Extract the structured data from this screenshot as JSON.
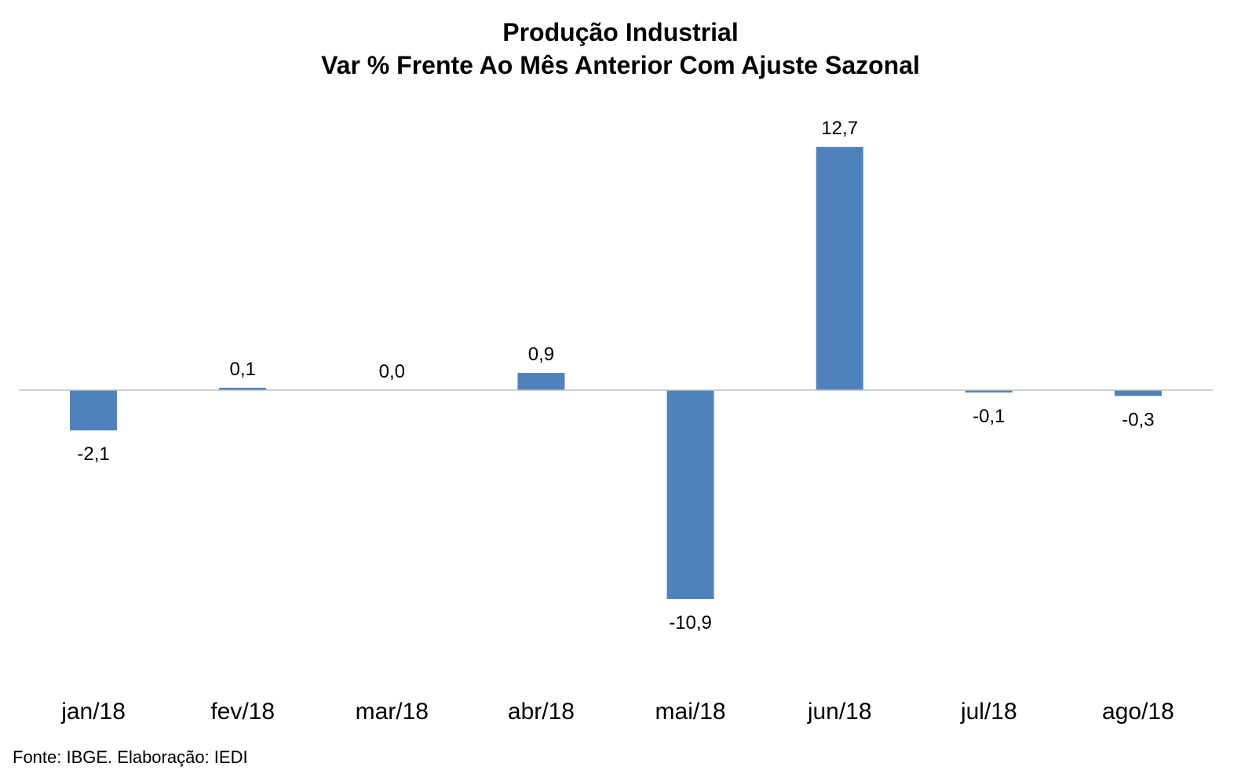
{
  "chart_data": {
    "type": "bar",
    "title": "Produção Industrial",
    "subtitle": "Var % Frente Ao Mês Anterior Com Ajuste Sazonal",
    "categories": [
      "jan/18",
      "fev/18",
      "mar/18",
      "abr/18",
      "mai/18",
      "jun/18",
      "jul/18",
      "ago/18"
    ],
    "values": [
      -2.1,
      0.1,
      0.0,
      0.9,
      -10.9,
      12.7,
      -0.1,
      -0.3
    ],
    "data_labels": [
      "-2,1",
      "0,1",
      "0,0",
      "0,9",
      "-10,9",
      "12,7",
      "-0,1",
      "-0,3"
    ],
    "xlabel": "",
    "ylabel": "",
    "grid": false,
    "legend": "none",
    "bar_color": "#4F81BD",
    "axis_color": "#BFBFBF"
  },
  "footer": {
    "source": "Fonte: IBGE. Elaboração: IEDI"
  }
}
